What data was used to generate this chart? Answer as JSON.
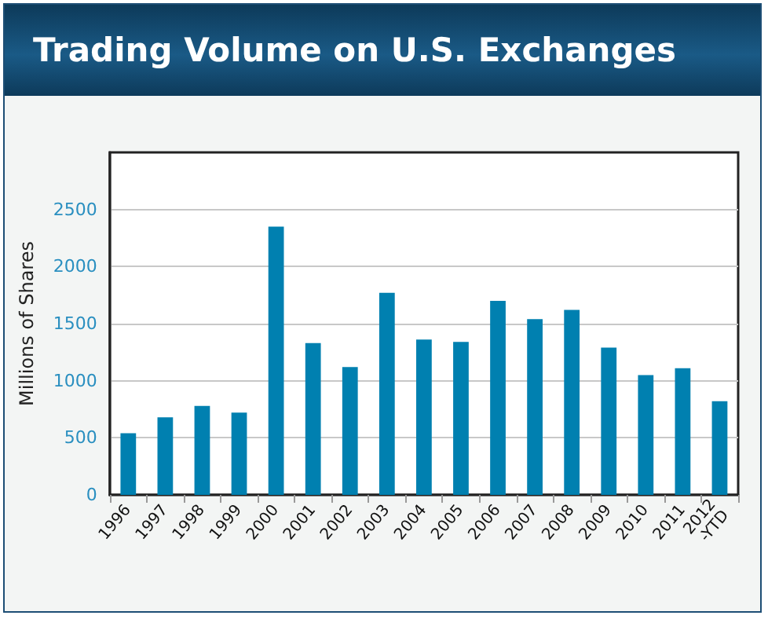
{
  "chart_data": {
    "type": "bar",
    "title": "Trading Volume on U.S. Exchanges",
    "ylabel": "Millions of Shares",
    "categories": [
      "1996",
      "1997",
      "1998",
      "1999",
      "2000",
      "2001",
      "2002",
      "2003",
      "2004",
      "2005",
      "2006",
      "2007",
      "2008",
      "2009",
      "2010",
      "2011",
      "2012\n-YTD"
    ],
    "values": [
      540,
      680,
      780,
      720,
      2350,
      1330,
      1120,
      1770,
      1360,
      1340,
      1700,
      1540,
      1620,
      1290,
      1050,
      1110,
      820
    ],
    "color": "#0080b0",
    "ylim": [
      0,
      3000
    ],
    "yticks": [
      0,
      500,
      1000,
      1500,
      2000,
      2500
    ],
    "grid": "y"
  }
}
